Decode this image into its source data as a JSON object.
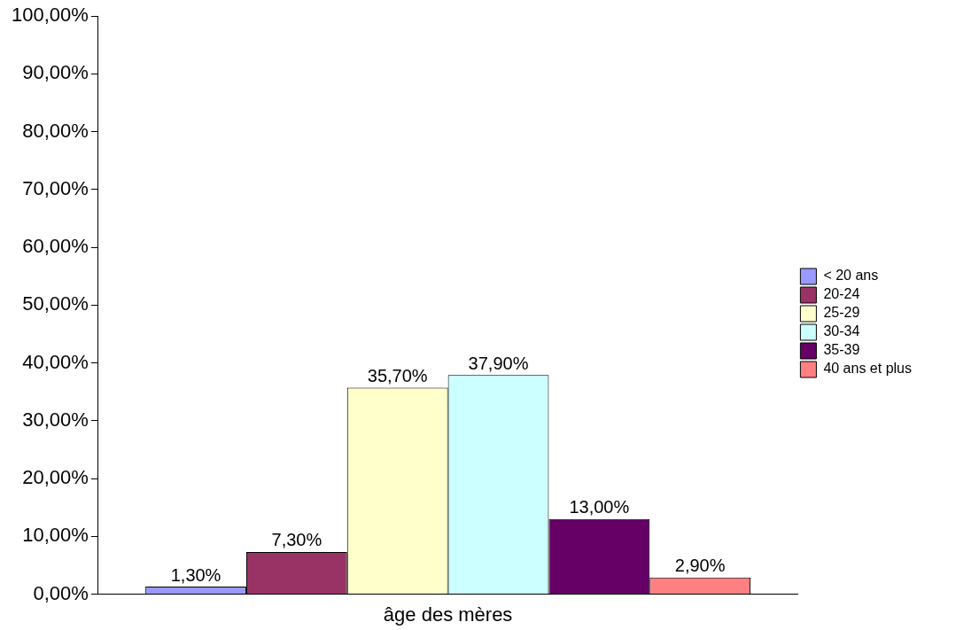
{
  "chart_data": {
    "type": "bar",
    "categories": [
      "âge des mères"
    ],
    "series": [
      {
        "name": "< 20 ans",
        "color": "#9999ff",
        "values": [
          1.3
        ],
        "value_labels": [
          "1,30%"
        ]
      },
      {
        "name": "20-24",
        "color": "#993366",
        "values": [
          7.3
        ],
        "value_labels": [
          "7,30%"
        ]
      },
      {
        "name": "25-29",
        "color": "#ffffcc",
        "values": [
          35.7
        ],
        "value_labels": [
          "35,70%"
        ]
      },
      {
        "name": "30-34",
        "color": "#ccffff",
        "values": [
          37.9
        ],
        "value_labels": [
          "37,90%"
        ]
      },
      {
        "name": "35-39",
        "color": "#660066",
        "values": [
          13.0
        ],
        "value_labels": [
          "13,00%"
        ]
      },
      {
        "name": "40 ans et plus",
        "color": "#ff8080",
        "values": [
          2.9
        ],
        "value_labels": [
          "2,90%"
        ]
      }
    ],
    "ylim": [
      0,
      100
    ],
    "yticks": [
      {
        "value": 0,
        "label": "0,00%"
      },
      {
        "value": 10,
        "label": "10,00%"
      },
      {
        "value": 20,
        "label": "20,00%"
      },
      {
        "value": 30,
        "label": "30,00%"
      },
      {
        "value": 40,
        "label": "40,00%"
      },
      {
        "value": 50,
        "label": "50,00%"
      },
      {
        "value": 60,
        "label": "60,00%"
      },
      {
        "value": 70,
        "label": "70,00%"
      },
      {
        "value": 80,
        "label": "80,00%"
      },
      {
        "value": 90,
        "label": "90,00%"
      },
      {
        "value": 100,
        "label": "100,00%"
      }
    ],
    "grid": false,
    "legend": "right"
  }
}
